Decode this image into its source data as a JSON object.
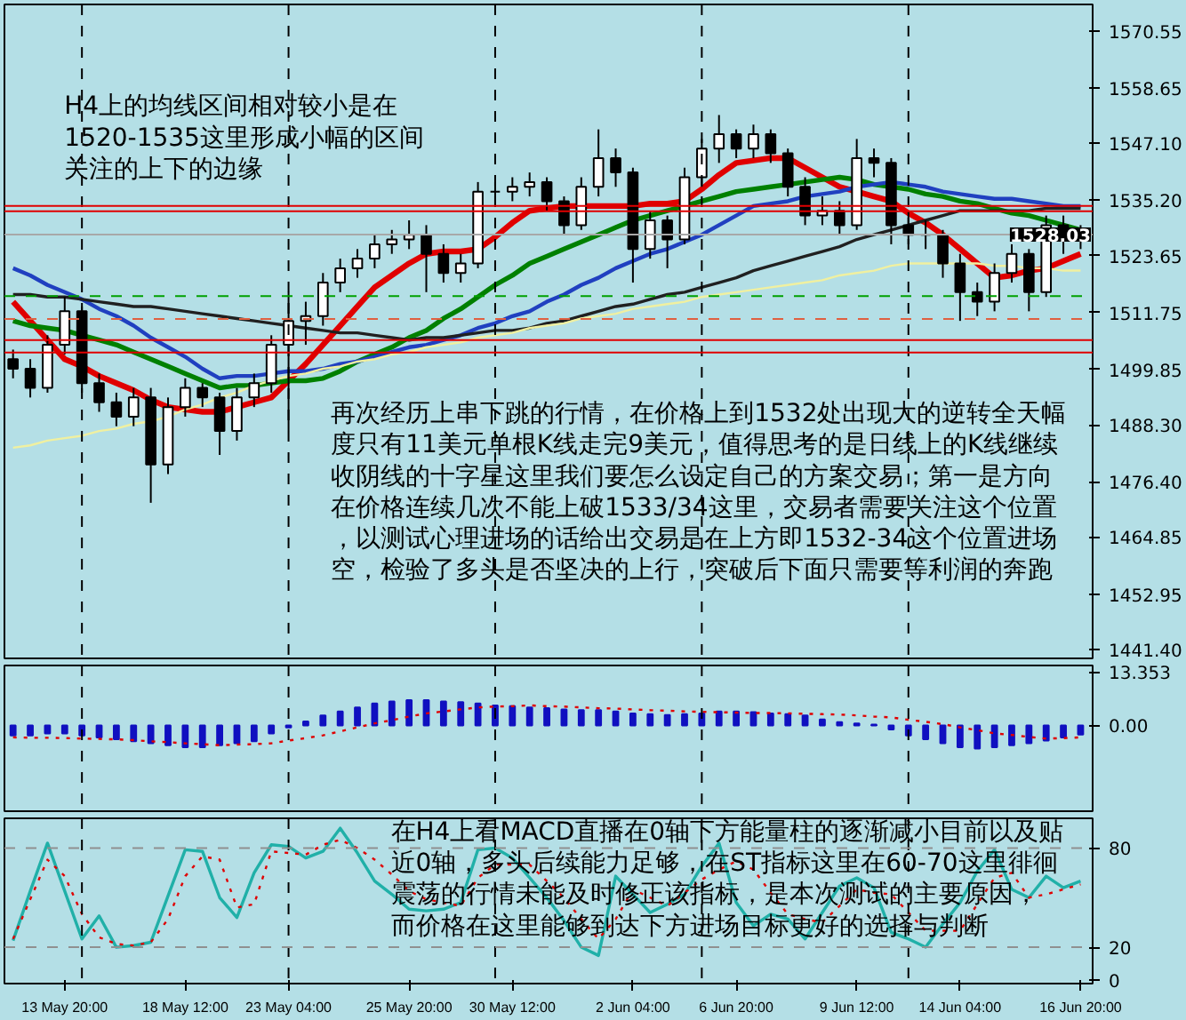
{
  "chart_data": [
    {
      "type": "candlestick",
      "color": "#000000",
      "ylim": [
        1439.5,
        1576.1
      ],
      "tick_labels": "y",
      "grid": "x",
      "yticks": [
        {
          "value": 1570.55,
          "label": "1570.55"
        },
        {
          "value": 1558.65,
          "label": "1558.65"
        },
        {
          "value": 1547.1,
          "label": "1547.10"
        },
        {
          "value": 1535.2,
          "label": "1535.20"
        },
        {
          "value": 1523.65,
          "label": "1523.65"
        },
        {
          "value": 1511.75,
          "label": "1511.75"
        },
        {
          "value": 1499.85,
          "label": "1499.85"
        },
        {
          "value": 1488.3,
          "label": "1488.30"
        },
        {
          "value": 1476.4,
          "label": "1476.40"
        },
        {
          "value": 1464.85,
          "label": "1464.85"
        },
        {
          "value": 1452.95,
          "label": "1452.95"
        },
        {
          "value": 1441.4,
          "label": "1441.40"
        }
      ],
      "categories": [
        null,
        null,
        null,
        null,
        null,
        null,
        null,
        null,
        null,
        null,
        null,
        null,
        null,
        null,
        null,
        null,
        null,
        null,
        null,
        null,
        null,
        null,
        null,
        null,
        null,
        null,
        null,
        null,
        null,
        null,
        null,
        null,
        null,
        null,
        null,
        null,
        null,
        null,
        null,
        null,
        null,
        null,
        null,
        null,
        null,
        null,
        null,
        null,
        null,
        null,
        null,
        null,
        null,
        null,
        null,
        null,
        null,
        null,
        null,
        null,
        null,
        null,
        null
      ],
      "ohlc": [
        [
          1502,
          1504,
          1498,
          1500
        ],
        [
          1500,
          1502,
          1494,
          1496
        ],
        [
          1496,
          1507,
          1495,
          1505
        ],
        [
          1505,
          1515,
          1503,
          1512
        ],
        [
          1512,
          1513,
          1495,
          1497
        ],
        [
          1497,
          1499,
          1491,
          1493
        ],
        [
          1493,
          1495,
          1488,
          1490
        ],
        [
          1490,
          1496,
          1488,
          1494
        ],
        [
          1494,
          1496,
          1472,
          1480
        ],
        [
          1480,
          1494,
          1478,
          1492
        ],
        [
          1492,
          1498,
          1490,
          1496
        ],
        [
          1496,
          1497,
          1492,
          1494
        ],
        [
          1494,
          1495,
          1482,
          1487
        ],
        [
          1487,
          1496,
          1485,
          1494
        ],
        [
          1494,
          1499,
          1492,
          1497
        ],
        [
          1497,
          1507,
          1495,
          1505
        ],
        [
          1505,
          1516,
          1487,
          1510
        ],
        [
          1510,
          1514,
          1505,
          1511
        ],
        [
          1511,
          1520,
          1509,
          1518
        ],
        [
          1518,
          1523,
          1516,
          1521
        ],
        [
          1521,
          1525,
          1519,
          1523
        ],
        [
          1523,
          1528,
          1521,
          1526
        ],
        [
          1526,
          1529,
          1524,
          1527
        ],
        [
          1527,
          1531,
          1525,
          1528
        ],
        [
          1528,
          1530,
          1516,
          1524
        ],
        [
          1524,
          1526,
          1518,
          1520
        ],
        [
          1520,
          1524,
          1518,
          1522
        ],
        [
          1522,
          1539,
          1521,
          1537
        ],
        [
          1537,
          1539,
          1534,
          1537
        ],
        [
          1537,
          1540,
          1535,
          1538
        ],
        [
          1538,
          1541,
          1536,
          1539
        ],
        [
          1539,
          1540,
          1533,
          1535
        ],
        [
          1535,
          1536,
          1528,
          1530
        ],
        [
          1530,
          1540,
          1529,
          1538
        ],
        [
          1538,
          1550,
          1536,
          1544
        ],
        [
          1544,
          1546,
          1538,
          1541
        ],
        [
          1541,
          1542,
          1518,
          1525
        ],
        [
          1525,
          1533,
          1523,
          1531
        ],
        [
          1531,
          1532,
          1521,
          1527
        ],
        [
          1527,
          1542,
          1526,
          1540
        ],
        [
          1540,
          1548,
          1538,
          1546
        ],
        [
          1546,
          1553,
          1543,
          1549
        ],
        [
          1549,
          1550,
          1544,
          1546
        ],
        [
          1546,
          1551,
          1544,
          1549
        ],
        [
          1549,
          1550,
          1543,
          1545
        ],
        [
          1545,
          1546,
          1536,
          1538
        ],
        [
          1538,
          1540,
          1530,
          1532
        ],
        [
          1532,
          1536,
          1530,
          1533
        ],
        [
          1533,
          1535,
          1528,
          1530
        ],
        [
          1530,
          1548,
          1529,
          1544
        ],
        [
          1544,
          1546,
          1540,
          1543
        ],
        [
          1543,
          1544,
          1526,
          1530
        ],
        [
          1530,
          1533,
          1526,
          1528
        ],
        [
          1528,
          1531,
          1525,
          1528
        ],
        [
          1528,
          1529,
          1519,
          1522
        ],
        [
          1522,
          1524,
          1510,
          1516
        ],
        [
          1516,
          1518,
          1511,
          1514
        ],
        [
          1514,
          1522,
          1512,
          1520
        ],
        [
          1520,
          1526,
          1518,
          1524
        ],
        [
          1524,
          1525,
          1512,
          1516
        ],
        [
          1516,
          1532,
          1515,
          1530
        ],
        [
          1530,
          1532,
          1524,
          1527
        ],
        [
          1527,
          1530,
          1525,
          1528.03
        ]
      ],
      "series": [
        {
          "type": "line",
          "color": "#e00000",
          "values": [
            1514,
            1510,
            1506,
            1502,
            1500.5,
            1498.5,
            1497,
            1495.5,
            1493.5,
            1492,
            1491.5,
            1491,
            1491,
            1492,
            1493,
            1494,
            1497.5,
            1501,
            1505,
            1509,
            1513,
            1517,
            1519.5,
            1522,
            1524,
            1524.5,
            1524.5,
            1525,
            1527.5,
            1530.5,
            1533,
            1533.5,
            1534,
            1534,
            1534,
            1534,
            1534,
            1534.5,
            1534.5,
            1535,
            1537.5,
            1540.5,
            1543,
            1543.5,
            1544,
            1544,
            1542,
            1540,
            1538,
            1537,
            1536,
            1535,
            1532.5,
            1530.5,
            1528,
            1525,
            1522,
            1519,
            1519.5,
            1520.5,
            1521,
            1522.5,
            1524
          ]
        },
        {
          "type": "line",
          "color": "#008000",
          "values": [
            1510,
            1509,
            1508.5,
            1508,
            1507,
            1506,
            1505,
            1503.5,
            1502,
            1500.5,
            1499,
            1497.5,
            1496,
            1496.5,
            1496.5,
            1497,
            1497.5,
            1497.5,
            1498,
            1499.5,
            1501.5,
            1503,
            1504.5,
            1506.5,
            1508,
            1510.5,
            1512.5,
            1515,
            1517.5,
            1519.5,
            1522,
            1523.5,
            1525,
            1526.5,
            1528,
            1529.5,
            1531,
            1532,
            1533,
            1534,
            1535,
            1536,
            1537,
            1537.5,
            1538,
            1538.5,
            1539,
            1539.5,
            1540,
            1539.5,
            1538.5,
            1538,
            1537.5,
            1536.5,
            1536,
            1535,
            1534.5,
            1533.5,
            1532.5,
            1532,
            1531,
            1530,
            1529
          ]
        },
        {
          "type": "line",
          "color": "#2040c0",
          "values": [
            1521,
            1519.5,
            1517.5,
            1516,
            1514.5,
            1512.5,
            1511,
            1509,
            1506.5,
            1504.5,
            1502.5,
            1500,
            1498,
            1498.5,
            1498.5,
            1499,
            1499.5,
            1499.5,
            1500,
            1501,
            1501.5,
            1502.5,
            1503.5,
            1504.5,
            1505,
            1506,
            1507,
            1508.5,
            1509.5,
            1511,
            1512,
            1514,
            1515.5,
            1517.5,
            1519,
            1521,
            1522.5,
            1524,
            1525,
            1526.5,
            1528,
            1530,
            1532,
            1534,
            1534.5,
            1535,
            1536,
            1536.5,
            1537,
            1538,
            1538.5,
            1539,
            1538.5,
            1538,
            1537,
            1536.5,
            1536,
            1535.5,
            1535.5,
            1535,
            1534.5,
            1534,
            1534
          ]
        },
        {
          "type": "line",
          "color": "#202020",
          "values": [
            1515.5,
            1515.5,
            1515,
            1515,
            1514.5,
            1514,
            1513.5,
            1513,
            1513,
            1512.5,
            1512,
            1511.5,
            1511,
            1510.5,
            1510,
            1509.5,
            1509,
            1508.5,
            1508,
            1507.5,
            1507.5,
            1507,
            1506.5,
            1506,
            1506.5,
            1506.5,
            1507,
            1507.5,
            1508,
            1508,
            1508.5,
            1509.5,
            1510,
            1511,
            1512,
            1513,
            1513.5,
            1514.5,
            1515.5,
            1516,
            1517,
            1518,
            1519,
            1520.5,
            1521.5,
            1522.5,
            1523.5,
            1524.5,
            1525.5,
            1527,
            1528,
            1529,
            1530,
            1531,
            1532,
            1533,
            1533,
            1533,
            1533,
            1533,
            1533.5,
            1533.5,
            1533.5
          ]
        },
        {
          "type": "line",
          "color": "#f0f0a0",
          "values": [
            1483.5,
            1484,
            1485,
            1485.5,
            1486,
            1487,
            1487.5,
            1488.5,
            1489,
            1490,
            1491.5,
            1492.5,
            1494,
            1495,
            1496.5,
            1497.5,
            1498.5,
            1499,
            1500,
            1500.5,
            1501.5,
            1502,
            1503,
            1503.5,
            1504.5,
            1505,
            1505.5,
            1506.5,
            1507,
            1507.5,
            1508.5,
            1509,
            1509.5,
            1510.5,
            1511,
            1511.5,
            1512.5,
            1513,
            1513.5,
            1514,
            1515,
            1515.5,
            1516,
            1516.5,
            1517,
            1517.5,
            1518,
            1518.5,
            1519.5,
            1520,
            1520.5,
            1521.5,
            1522,
            1522,
            1522,
            1522,
            1522,
            1521.5,
            1521.5,
            1521,
            1521,
            1520.5,
            1520.5
          ]
        }
      ],
      "ref_lines": [
        {
          "axis": "y",
          "value": 1534.0,
          "color": "#e00000"
        },
        {
          "axis": "y",
          "value": 1532.9,
          "color": "#e00000"
        },
        {
          "axis": "y",
          "value": 1506.0,
          "color": "#e00000"
        },
        {
          "axis": "y",
          "value": 1503.4,
          "color": "#e00000"
        },
        {
          "axis": "y",
          "value": 1515.2,
          "color": "#00a000",
          "line_style": "dashed"
        },
        {
          "axis": "y",
          "value": 1510.4,
          "color": "#e06040",
          "line_style": "dashed"
        },
        {
          "axis": "y",
          "value": 1528.03,
          "color": "#a8a8a8",
          "label": "1528.03"
        }
      ],
      "annotations": [
        "H4上的均线区间相对较小是在1520-1535这里形成小幅的区间关注的上下的边缘",
        "再次经历上串下跳的行情，在价格上到1532处出现大的逆转全天幅度只有11美元单根K线走完9美元，值得思考的是日线上的K线继续收阴线的十字星这里我们要怎么设定自己的方案交易；第一是方向在价格连续几次不能上破1533/34这里，交易者需要关注这个位置，以测试心理进场的话给出交易是在上方即1532-34这个位置进场空，检验了多头是否坚决的上行，突破后下面只需要等利润的奔跑"
      ]
    },
    {
      "type": "bar",
      "ylim": [
        -21.5,
        15.0
      ],
      "tick_labels": "y",
      "grid": "x",
      "yticks": [
        {
          "value": 13.353,
          "label": "13.353"
        },
        {
          "value": 0,
          "label": "0.00"
        }
      ],
      "categories": [
        null,
        null,
        null,
        null,
        null,
        null,
        null,
        null,
        null,
        null,
        null,
        null,
        null,
        null,
        null,
        null,
        null,
        null,
        null,
        null,
        null,
        null,
        null,
        null,
        null,
        null,
        null,
        null,
        null,
        null,
        null,
        null,
        null,
        null,
        null,
        null,
        null,
        null,
        null,
        null,
        null,
        null,
        null,
        null,
        null,
        null,
        null,
        null,
        null,
        null,
        null,
        null,
        null,
        null,
        null,
        null,
        null,
        null,
        null,
        null,
        null,
        null,
        null
      ],
      "series": [
        {
          "type": "bar",
          "color": "#1010c0",
          "values": [
            -2.5,
            -2.5,
            -2,
            -2,
            -2.5,
            -3,
            -3.5,
            -4,
            -4.5,
            -5,
            -5.5,
            -5.5,
            -5,
            -4.5,
            -4,
            -2,
            -0.5,
            1,
            2.5,
            3.5,
            4.5,
            5.5,
            6,
            6.3,
            6.3,
            6,
            5.8,
            5.5,
            5,
            4.8,
            4.5,
            4.3,
            4,
            3.8,
            3.8,
            3.5,
            3,
            2.8,
            2.6,
            2.8,
            3,
            3.5,
            3.5,
            3.3,
            3,
            2.8,
            2.5,
            1.5,
            0.8,
            0.5,
            0.2,
            -1,
            -2.5,
            -3.5,
            -4.5,
            -5.5,
            -5.8,
            -5.5,
            -5,
            -4.5,
            -3.8,
            -3,
            -2.3
          ]
        },
        {
          "type": "line",
          "color": "#e00000",
          "line_style": "dotted",
          "values": [
            -3,
            -3.1,
            -3.1,
            -3.2,
            -3.3,
            -3.4,
            -3.5,
            -3.7,
            -4,
            -4.2,
            -4.5,
            -4.7,
            -5,
            -4.8,
            -4.7,
            -4.5,
            -3.8,
            -3.2,
            -2.5,
            -1.5,
            -0.5,
            0.5,
            1.3,
            2.2,
            3,
            3.5,
            4,
            4.5,
            4.7,
            4.8,
            5,
            4.8,
            4.7,
            4.5,
            4.3,
            4.2,
            4,
            3.8,
            3.7,
            3.5,
            3.4,
            3.3,
            3.2,
            3.1,
            3.1,
            3,
            2.9,
            2.8,
            2.7,
            2.5,
            2.2,
            2,
            1.4,
            0.9,
            0.3,
            -0.5,
            -1.2,
            -2,
            -2.4,
            -2.9,
            -3.3,
            -3.2,
            -3
          ]
        }
      ]
    },
    {
      "type": "line",
      "ylim": [
        -2,
        98
      ],
      "grid": "x",
      "yticks": [
        0,
        20,
        80
      ],
      "categories": [
        null,
        null,
        null,
        "13 May 20:00",
        null,
        null,
        null,
        null,
        null,
        null,
        "18 May 12:00",
        null,
        null,
        null,
        null,
        null,
        "23 May 04:00",
        null,
        null,
        null,
        null,
        null,
        null,
        "25 May 20:00",
        null,
        null,
        null,
        null,
        null,
        "30 May 12:00",
        null,
        null,
        null,
        null,
        null,
        null,
        "2 Jun 04:00",
        null,
        null,
        null,
        null,
        null,
        "6 Jun 20:00",
        null,
        null,
        null,
        null,
        null,
        null,
        "9 Jun 12:00",
        null,
        null,
        null,
        null,
        null,
        "14 Jun 04:00",
        null,
        null,
        null,
        null,
        null,
        null,
        "16 Jun 20:00"
      ],
      "series": [
        {
          "type": "line",
          "color": "#20b0a8",
          "values": [
            24,
            54,
            83,
            54,
            25,
            39,
            20,
            21,
            23,
            51,
            79,
            78,
            50,
            38,
            65,
            82,
            81,
            74,
            78,
            92,
            77,
            60,
            52,
            43,
            42,
            43,
            47,
            79,
            80,
            74,
            62,
            50,
            36,
            20,
            15,
            63,
            52,
            41,
            46,
            52,
            69,
            83,
            47,
            33,
            40,
            37,
            25,
            41,
            57,
            62,
            56,
            29,
            25,
            20,
            34,
            47,
            66,
            79,
            55,
            50,
            63,
            56,
            60
          ]
        },
        {
          "type": "line",
          "color": "#e00000",
          "line_style": "dotted",
          "values": [
            25,
            49,
            73,
            63,
            40,
            26,
            22,
            21,
            23,
            37,
            63,
            75,
            73,
            44,
            46,
            78,
            77,
            76,
            82,
            85,
            80,
            73,
            64,
            54,
            49,
            47,
            45,
            62,
            70,
            70,
            70,
            60,
            50,
            37,
            25,
            37,
            55,
            50,
            45,
            53,
            61,
            67,
            72,
            67,
            53,
            40,
            37,
            35,
            45,
            55,
            53,
            52,
            41,
            30,
            30,
            30,
            46,
            62,
            65,
            50,
            52,
            55,
            58
          ]
        }
      ],
      "ref_lines": [
        {
          "axis": "y",
          "value": 20,
          "color": "#909090",
          "line_style": "dashed"
        },
        {
          "axis": "y",
          "value": 80,
          "color": "#909090",
          "line_style": "dashed"
        }
      ],
      "annotations": [
        "在H4上看MACD直播在0轴下方能量柱的逐渐减小目前以及贴近0轴，多头后续能力足够，在ST指标这里在60-70这里徘徊震荡的行情未能及时修正该指标，是本次测试的主要原因，而价格在这里能够到达下方进场目标更好的选择与判断"
      ]
    }
  ]
}
